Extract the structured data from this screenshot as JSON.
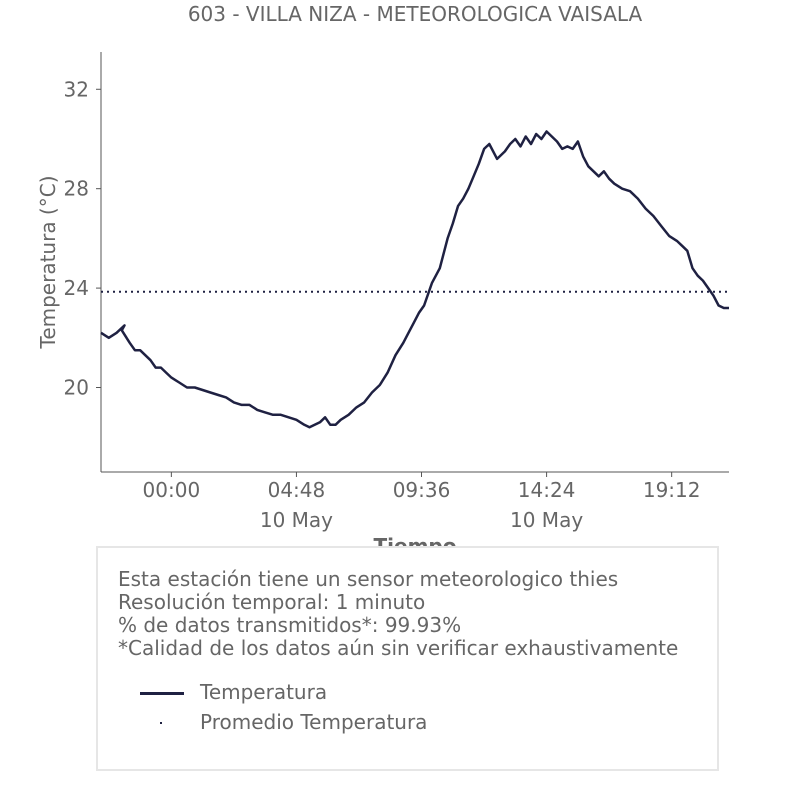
{
  "chart_data": {
    "type": "line",
    "title": "603 - VILLA NIZA - METEOROLOGICA VAISALA",
    "xlabel": "Tiempo",
    "ylabel": "Temperatura (°C)",
    "x_unit": "hours since 10 May 00:00",
    "xlim": [
      -2.7,
      21.4
    ],
    "ylim": [
      16.6,
      33.5
    ],
    "x_ticks": [
      {
        "value": 0.0,
        "label": "00:00",
        "sublabel": ""
      },
      {
        "value": 4.8,
        "label": "04:48",
        "sublabel": "10 May"
      },
      {
        "value": 9.6,
        "label": "09:36",
        "sublabel": ""
      },
      {
        "value": 14.4,
        "label": "14:24",
        "sublabel": "10 May"
      },
      {
        "value": 19.2,
        "label": "19:12",
        "sublabel": ""
      }
    ],
    "y_ticks": [
      {
        "value": 20,
        "label": "20"
      },
      {
        "value": 24,
        "label": "24"
      },
      {
        "value": 28,
        "label": "28"
      },
      {
        "value": 32,
        "label": "32"
      }
    ],
    "series": [
      {
        "name": "Temperatura",
        "color": "#1f2142",
        "style": "solid",
        "x": [
          -2.7,
          -2.4,
          -2.1,
          -1.8,
          -1.9,
          -1.6,
          -1.4,
          -1.2,
          -1.0,
          -0.8,
          -0.6,
          -0.4,
          -0.2,
          0.0,
          0.3,
          0.6,
          0.9,
          1.2,
          1.5,
          1.8,
          2.1,
          2.4,
          2.7,
          3.0,
          3.3,
          3.6,
          3.9,
          4.2,
          4.5,
          4.8,
          5.1,
          5.3,
          5.5,
          5.7,
          5.9,
          6.1,
          6.3,
          6.5,
          6.8,
          7.1,
          7.4,
          7.7,
          8.0,
          8.3,
          8.6,
          8.9,
          9.1,
          9.3,
          9.5,
          9.7,
          10.0,
          10.3,
          10.6,
          10.8,
          11.0,
          11.2,
          11.4,
          11.6,
          11.8,
          12.0,
          12.2,
          12.5,
          12.8,
          13.0,
          13.2,
          13.4,
          13.6,
          13.8,
          14.0,
          14.2,
          14.4,
          14.6,
          14.8,
          15.0,
          15.2,
          15.4,
          15.6,
          15.8,
          16.0,
          16.2,
          16.4,
          16.6,
          16.8,
          17.0,
          17.3,
          17.6,
          17.9,
          18.2,
          18.5,
          18.8,
          19.1,
          19.4,
          19.6,
          19.8,
          20.0,
          20.2,
          20.4,
          20.6,
          20.8,
          21.0,
          21.2,
          21.4
        ],
        "y": [
          22.2,
          22.0,
          22.2,
          22.5,
          22.3,
          21.8,
          21.5,
          21.5,
          21.3,
          21.1,
          20.8,
          20.8,
          20.6,
          20.4,
          20.2,
          20.0,
          20.0,
          19.9,
          19.8,
          19.7,
          19.6,
          19.4,
          19.3,
          19.3,
          19.1,
          19.0,
          18.9,
          18.9,
          18.8,
          18.7,
          18.5,
          18.4,
          18.5,
          18.6,
          18.8,
          18.5,
          18.5,
          18.7,
          18.9,
          19.2,
          19.4,
          19.8,
          20.1,
          20.6,
          21.3,
          21.8,
          22.2,
          22.6,
          23.0,
          23.3,
          24.2,
          24.8,
          26.0,
          26.6,
          27.3,
          27.6,
          28.0,
          28.5,
          29.0,
          29.6,
          29.8,
          29.2,
          29.5,
          29.8,
          30.0,
          29.7,
          30.1,
          29.8,
          30.2,
          30.0,
          30.3,
          30.1,
          29.9,
          29.6,
          29.7,
          29.6,
          29.9,
          29.3,
          28.9,
          28.7,
          28.5,
          28.7,
          28.4,
          28.2,
          28.0,
          27.9,
          27.6,
          27.2,
          26.9,
          26.5,
          26.1,
          25.9,
          25.7,
          25.5,
          24.8,
          24.5,
          24.3,
          24.0,
          23.7,
          23.3,
          23.2,
          23.2
        ]
      },
      {
        "name": "Promedio Temperatura",
        "color": "#1f2142",
        "style": "dotted",
        "x": [
          -2.7,
          21.4
        ],
        "y": [
          23.85,
          23.85
        ]
      }
    ],
    "legend_placement": "bottom",
    "grid": false
  },
  "info": {
    "lines": [
      "Esta estación tiene un sensor meteorologico thies",
      "Resolución temporal: 1 minuto",
      "% de datos transmitidos*: 99.93%",
      "*Calidad de los datos aún sin verificar exhaustivamente"
    ]
  },
  "legend": [
    {
      "label": "Temperatura"
    },
    {
      "label": "Promedio Temperatura"
    }
  ]
}
